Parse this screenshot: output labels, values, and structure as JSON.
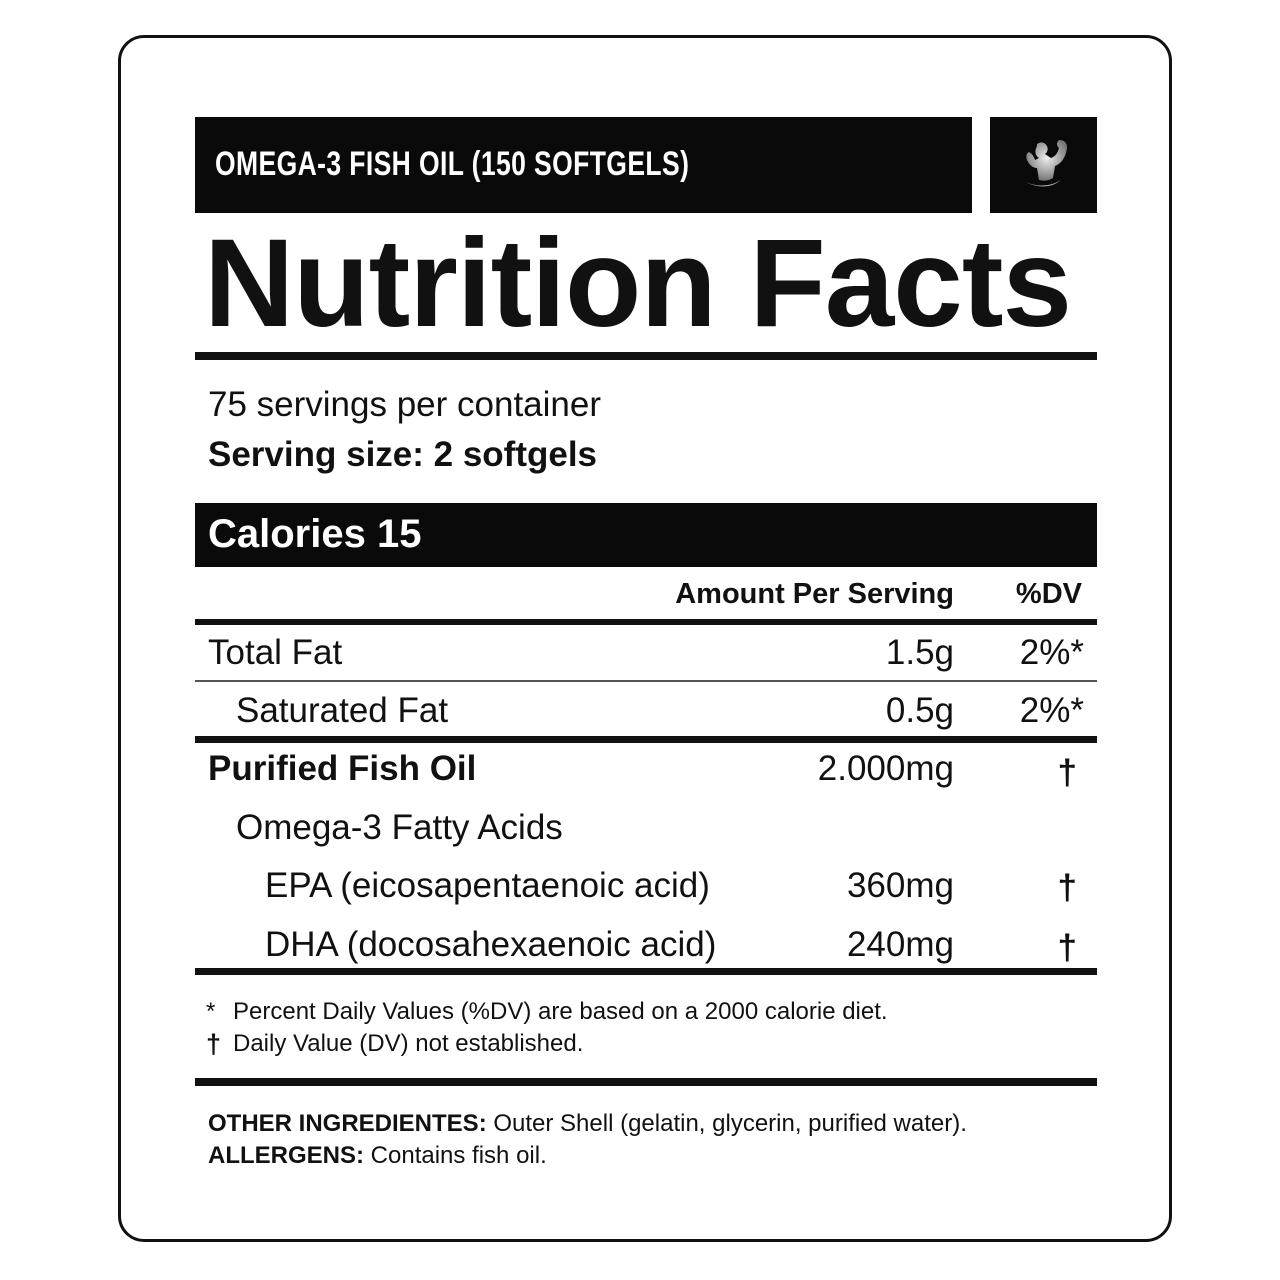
{
  "header": {
    "product": "OMEGA-3 FISH OIL (150 SOFTGELS)",
    "logo_icon": "flexing-bodybuilder-logo"
  },
  "title": "Nutrition Facts",
  "servings": {
    "per_container": "75 servings per container",
    "serving_size": "Serving size: 2 softgels"
  },
  "calories": "Calories 15",
  "columns": {
    "amount": "Amount Per Serving",
    "dv": "%DV"
  },
  "rows": [
    {
      "name": "Total Fat",
      "amount": "1.5g",
      "dv": "2%*"
    },
    {
      "name": "Saturated Fat",
      "amount": "0.5g",
      "dv": "2%*"
    },
    {
      "name": "Purified Fish Oil",
      "amount": "2.000mg",
      "dv": "†"
    },
    {
      "name": "Omega-3 Fatty Acids",
      "amount": "",
      "dv": ""
    },
    {
      "name": "EPA (eicosapentaenoic acid)",
      "amount": "360mg",
      "dv": "†"
    },
    {
      "name": "DHA (docosahexaenoic acid)",
      "amount": "240mg",
      "dv": "†"
    }
  ],
  "footnotes": [
    {
      "mark": "*",
      "text": "Percent Daily Values (%DV) are based on a 2000 calorie diet."
    },
    {
      "mark": "†",
      "text": "Daily Value (DV) not established."
    }
  ],
  "other": {
    "ingredients_label": "OTHER INGREDIENTES:",
    "ingredients": " Outer Shell (gelatin, glycerin, purified water).",
    "allergens_label": "ALLERGENS:",
    "allergens": " Contains fish oil."
  }
}
